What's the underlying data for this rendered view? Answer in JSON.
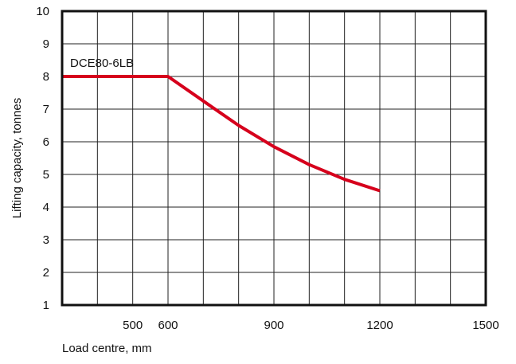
{
  "chart_data": {
    "type": "line",
    "title": "",
    "xlabel": "Load centre, mm",
    "ylabel": "Lifting capacity, tonnes",
    "xlim": [
      300,
      1500
    ],
    "ylim": [
      1,
      10
    ],
    "x_ticks": [
      500,
      600,
      900,
      1200,
      1500
    ],
    "x_tick_labels": [
      "500",
      "600",
      "900",
      "1200",
      "1500"
    ],
    "y_ticks": [
      1,
      2,
      3,
      4,
      5,
      6,
      7,
      8,
      9,
      10
    ],
    "y_tick_labels": [
      "1",
      "2",
      "3",
      "4",
      "5",
      "6",
      "7",
      "8",
      "9",
      "10"
    ],
    "grid": true,
    "series": [
      {
        "name": "DCE80-6LB",
        "color": "#d6001c",
        "x": [
          300,
          600,
          700,
          800,
          900,
          1000,
          1100,
          1200
        ],
        "y": [
          8,
          8,
          7.25,
          6.5,
          5.85,
          5.3,
          4.85,
          4.5
        ]
      }
    ]
  }
}
